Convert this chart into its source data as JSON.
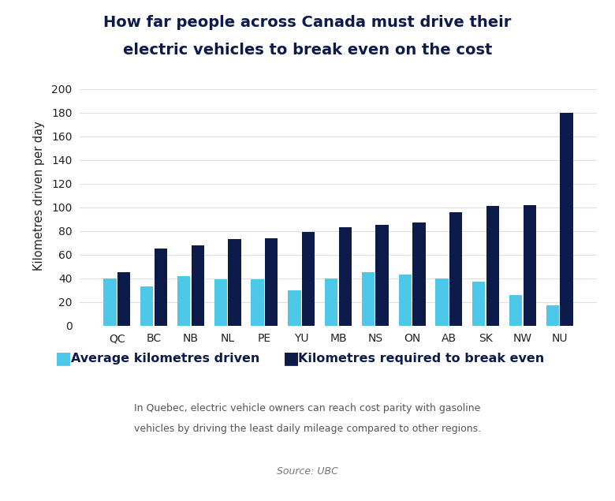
{
  "categories": [
    "QC",
    "BC",
    "NB",
    "NL",
    "PE",
    "YU",
    "MB",
    "NS",
    "ON",
    "AB",
    "SK",
    "NW",
    "NU"
  ],
  "avg_km": [
    40,
    33,
    42,
    39,
    39,
    30,
    40,
    45,
    43,
    40,
    37,
    26,
    17
  ],
  "breakeven_km": [
    45,
    65,
    68,
    73,
    74,
    79,
    83,
    85,
    87,
    96,
    101,
    102,
    180
  ],
  "avg_color": "#4DC8E8",
  "breakeven_color": "#0D1B4B",
  "title_line1": "How far people across Canada must drive their",
  "title_line2": "electric vehicles to break even on the cost",
  "ylabel": "Kilometres driven per day",
  "legend_avg": "Average kilometres driven",
  "legend_breakeven": "Kilometres required to break even",
  "annotation_line1": "In Quebec, electric vehicle owners can reach cost parity with gasoline",
  "annotation_line2": "vehicles by driving the least daily mileage compared to other regions.",
  "source": "Source: UBC",
  "ylim": [
    0,
    220
  ],
  "yticks": [
    0,
    20,
    40,
    60,
    80,
    100,
    120,
    140,
    160,
    180,
    200
  ],
  "bg_color": "#FFFFFF",
  "title_color": "#0D1B4B",
  "axis_color": "#333333",
  "bar_width": 0.35,
  "bar_gap": 0.03
}
